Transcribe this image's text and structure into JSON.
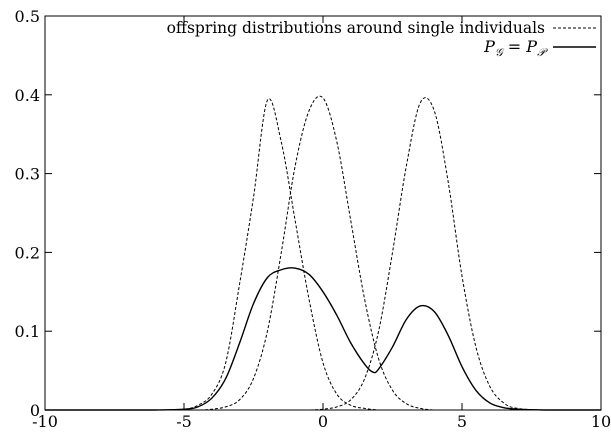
{
  "chart_data": {
    "type": "line",
    "title": "",
    "xlabel": "",
    "ylabel": "",
    "xlim": [
      -10,
      10
    ],
    "ylim": [
      0,
      0.5
    ],
    "grid": false,
    "legend_position": "top-right",
    "x_ticks": [
      -10,
      -5,
      0,
      5,
      10
    ],
    "x_tick_labels": [
      "-10",
      "-5",
      "0",
      "5",
      "10"
    ],
    "y_ticks": [
      0,
      0.1,
      0.2,
      0.3,
      0.4,
      0.5
    ],
    "y_tick_labels": [
      "0",
      "0.1",
      "0.2",
      "0.3",
      "0.4",
      "0.5"
    ],
    "series": [
      {
        "name": "offspring distributions around single individuals",
        "style": "dashed",
        "color": "#000000",
        "x": [
          -10,
          -9,
          -8,
          -7,
          -6,
          -5,
          -4.5,
          -4,
          -3.5,
          -3,
          -2.5,
          -2,
          -1.5,
          -1,
          -0.5,
          0,
          0.5,
          1,
          1.5,
          2,
          2.5,
          3,
          3.5,
          4,
          4.5,
          5,
          5.5,
          6,
          6.5,
          7,
          8,
          9,
          10
        ],
        "y": [
          0,
          0,
          0,
          0,
          0,
          0.001,
          0.006,
          0.02,
          0.06,
          0.16,
          0.27,
          0.393,
          0.34,
          0.24,
          0.14,
          0.06,
          0.02,
          0.006,
          0.002,
          0,
          0,
          0,
          0,
          0,
          0,
          0,
          0,
          0,
          0,
          0,
          0,
          0,
          0
        ]
      },
      {
        "name": "",
        "style": "dashed",
        "color": "#000000",
        "x": [
          -10,
          -9,
          -8,
          -7,
          -6,
          -5,
          -4.5,
          -4,
          -3.5,
          -3,
          -2.5,
          -2,
          -1.5,
          -1,
          -0.5,
          0,
          0.5,
          1,
          1.5,
          2,
          2.5,
          3,
          3.5,
          4,
          4.5,
          5,
          5.5,
          6,
          6.5,
          7,
          8,
          9,
          10
        ],
        "y": [
          0,
          0,
          0,
          0,
          0,
          0,
          0,
          0.001,
          0.004,
          0.013,
          0.04,
          0.1,
          0.2,
          0.31,
          0.38,
          0.396,
          0.34,
          0.24,
          0.14,
          0.065,
          0.025,
          0.008,
          0.002,
          0,
          0,
          0,
          0,
          0,
          0,
          0,
          0,
          0,
          0
        ]
      },
      {
        "name": "",
        "style": "dashed",
        "color": "#000000",
        "x": [
          -10,
          -9,
          -8,
          -7,
          -6,
          -5,
          -4.5,
          -4,
          -3.5,
          -3,
          -2.5,
          -2,
          -1.5,
          -1,
          -0.5,
          0,
          0.5,
          1,
          1.5,
          2,
          2.5,
          3,
          3.5,
          4,
          4.5,
          5,
          5.5,
          6,
          6.5,
          7,
          8,
          9,
          10
        ],
        "y": [
          0,
          0,
          0,
          0,
          0,
          0,
          0,
          0,
          0,
          0,
          0,
          0,
          0,
          0,
          0,
          0.001,
          0.004,
          0.013,
          0.04,
          0.1,
          0.2,
          0.31,
          0.39,
          0.38,
          0.29,
          0.17,
          0.08,
          0.03,
          0.009,
          0.002,
          0,
          0,
          0
        ]
      },
      {
        "name": "P_G = P_P",
        "style": "solid",
        "color": "#000000",
        "x": [
          -10,
          -9,
          -8,
          -7,
          -6,
          -5,
          -4.5,
          -4,
          -3.5,
          -3,
          -2.5,
          -2,
          -1.5,
          -1,
          -0.5,
          0,
          0.5,
          1,
          1.5,
          1.8,
          2,
          2.5,
          3,
          3.5,
          4,
          4.5,
          5,
          5.5,
          6,
          6.5,
          7,
          8,
          9,
          10
        ],
        "y": [
          0,
          0,
          0,
          0,
          0,
          0.001,
          0.004,
          0.015,
          0.04,
          0.085,
          0.135,
          0.168,
          0.178,
          0.18,
          0.172,
          0.15,
          0.12,
          0.085,
          0.058,
          0.048,
          0.052,
          0.08,
          0.115,
          0.132,
          0.125,
          0.095,
          0.055,
          0.025,
          0.009,
          0.003,
          0.001,
          0,
          0,
          0
        ]
      }
    ],
    "legend": {
      "dashed_label": "offspring distributions around single individuals",
      "solid_label_parts": {
        "lhs": "P",
        "lhs_sub": "𝒢",
        "eq": " = ",
        "rhs": "P",
        "rhs_sub": "𝒫"
      }
    }
  }
}
